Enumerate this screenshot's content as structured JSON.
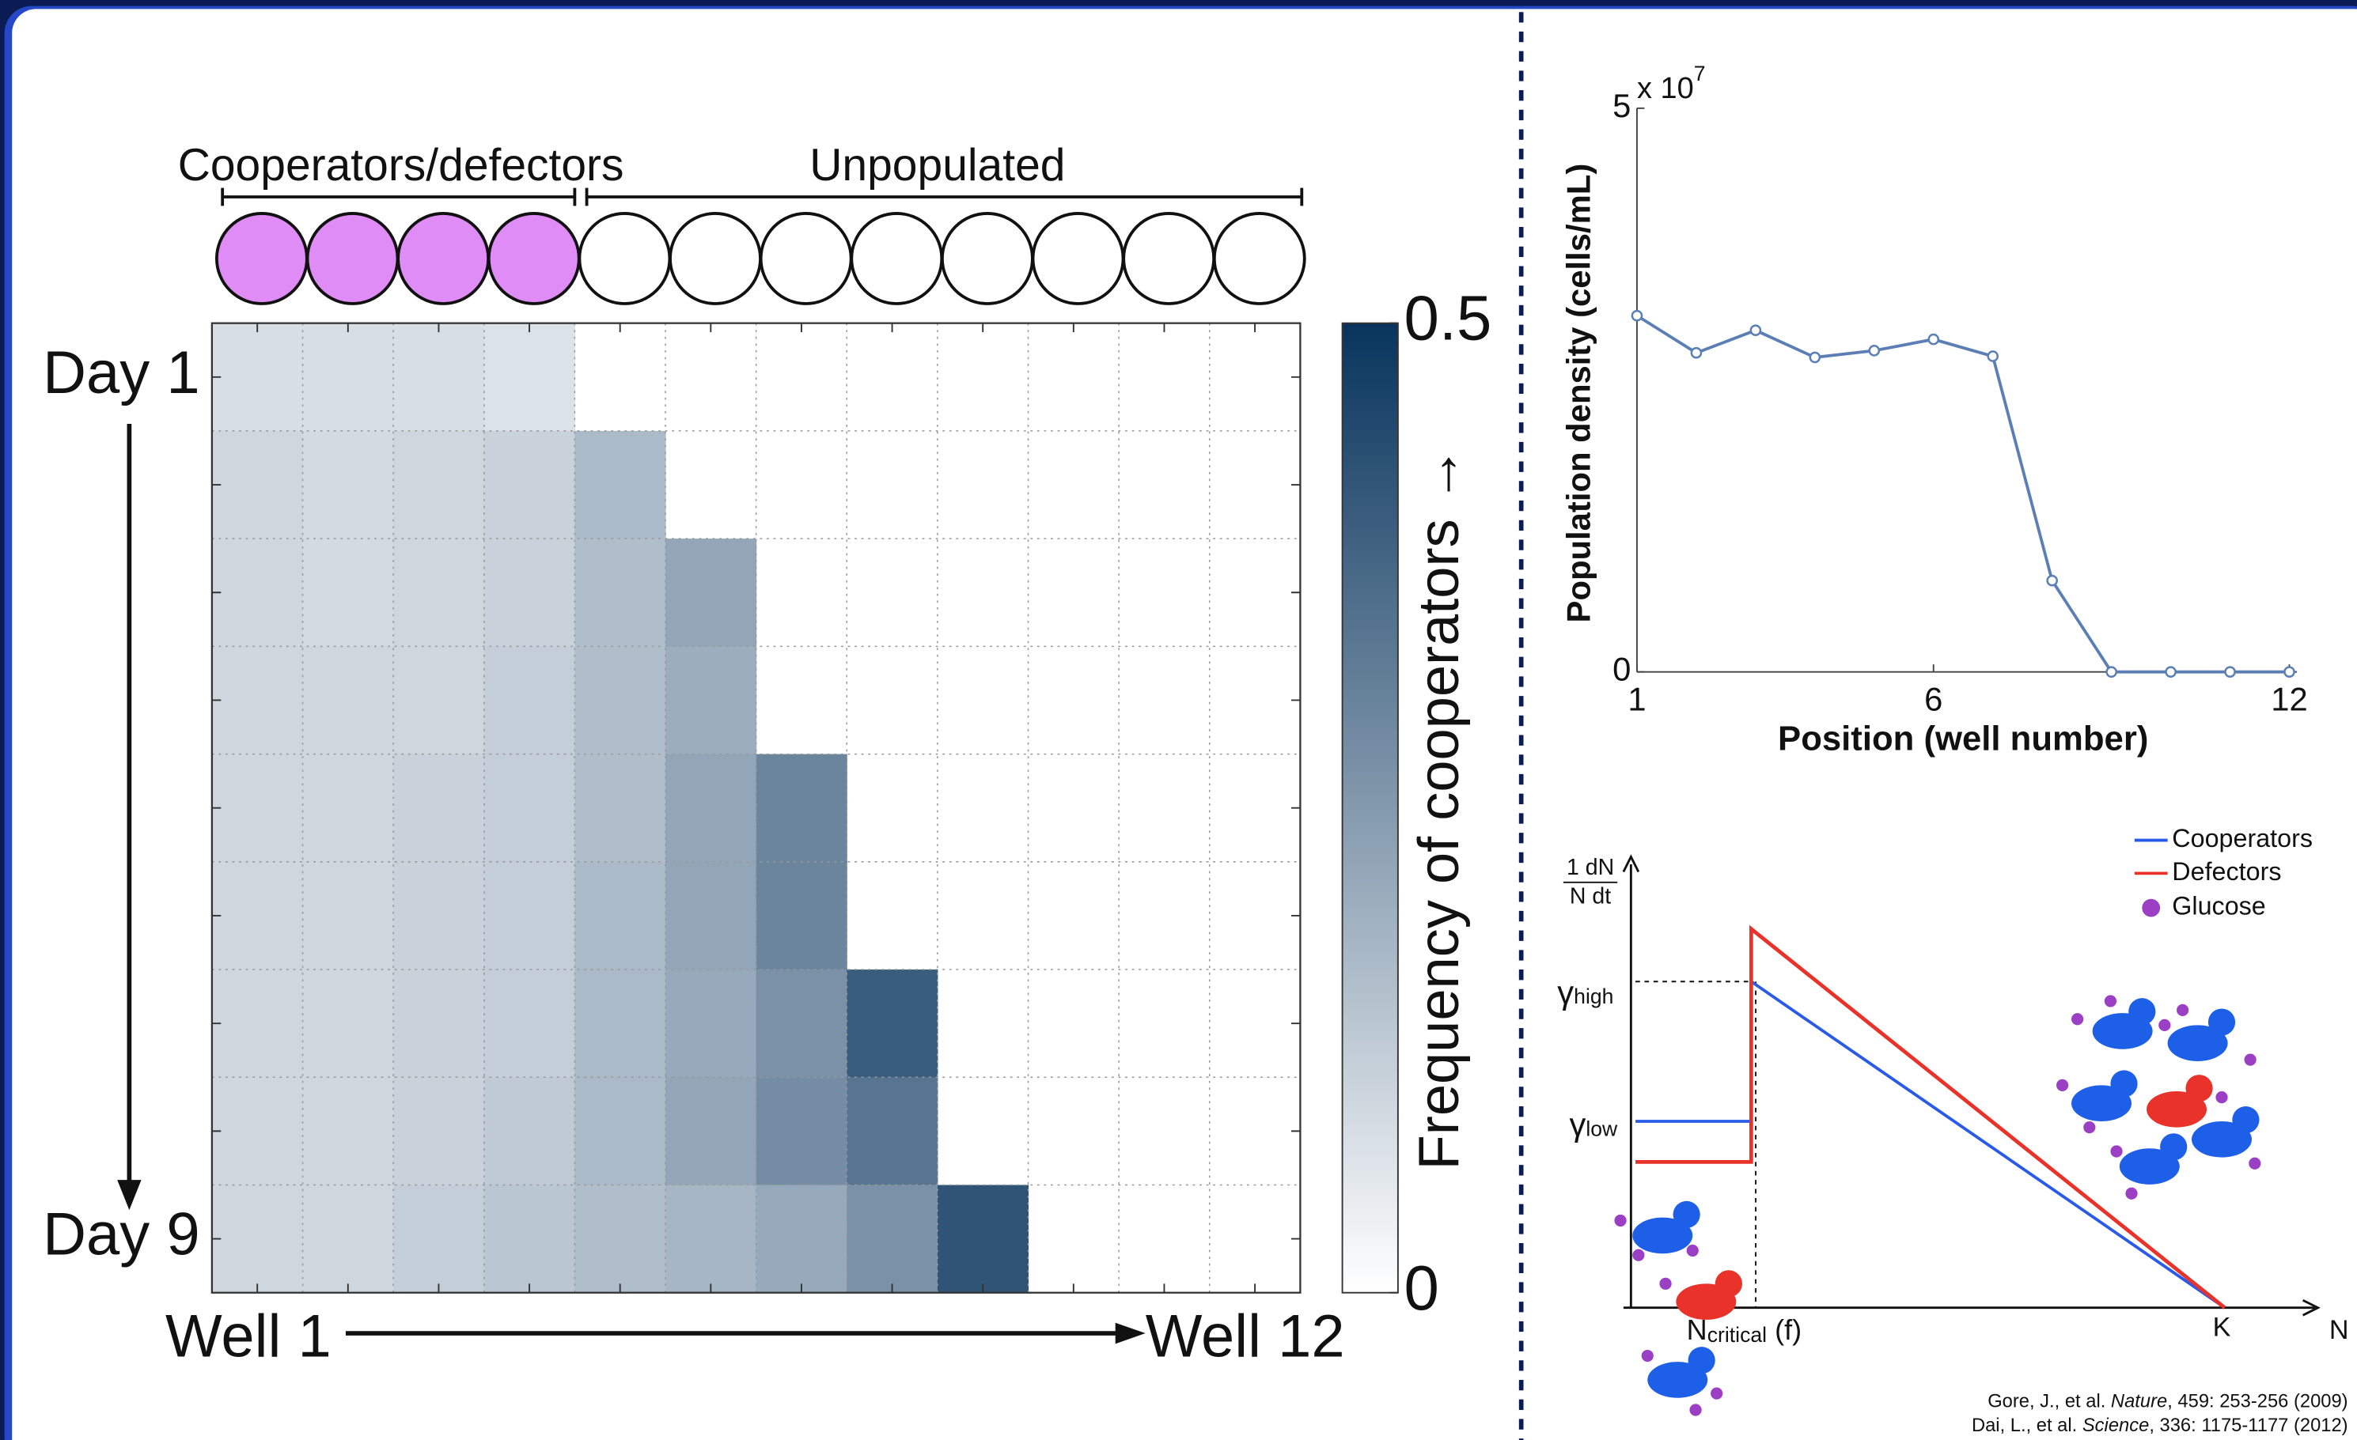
{
  "chart_data": [
    {
      "type": "heatmap",
      "header_left": "Cooperators/defectors",
      "header_right": "Unpopulated",
      "x_categories": [
        "Well 1",
        null,
        null,
        null,
        null,
        null,
        null,
        null,
        null,
        null,
        null,
        "Well 12"
      ],
      "y_categories": [
        "Day 1",
        null,
        null,
        null,
        null,
        null,
        null,
        null,
        "Day 9"
      ],
      "values": [
        [
          0.08,
          0.08,
          0.08,
          0.07,
          null,
          null,
          null,
          null,
          null,
          null,
          null,
          null
        ],
        [
          0.1,
          0.09,
          0.1,
          0.11,
          0.17,
          null,
          null,
          null,
          null,
          null,
          null,
          null
        ],
        [
          0.1,
          0.09,
          0.1,
          0.11,
          0.16,
          0.22,
          null,
          null,
          null,
          null,
          null,
          null
        ],
        [
          0.1,
          0.1,
          0.1,
          0.12,
          0.16,
          0.2,
          null,
          null,
          null,
          null,
          null,
          null
        ],
        [
          0.1,
          0.1,
          0.11,
          0.12,
          0.16,
          0.22,
          0.3,
          null,
          null,
          null,
          null,
          null
        ],
        [
          0.1,
          0.1,
          0.11,
          0.12,
          0.17,
          0.22,
          0.3,
          null,
          null,
          null,
          null,
          null
        ],
        [
          0.1,
          0.1,
          0.11,
          0.12,
          0.17,
          0.21,
          0.27,
          0.4,
          null,
          null,
          null,
          null
        ],
        [
          0.1,
          0.1,
          0.11,
          0.13,
          0.17,
          0.22,
          0.28,
          0.34,
          null,
          null,
          null,
          null
        ],
        [
          0.1,
          0.1,
          0.12,
          0.14,
          0.16,
          0.18,
          0.21,
          0.27,
          0.42,
          null,
          null,
          null
        ]
      ],
      "colormap": [
        "#ffffff",
        "#08345c"
      ],
      "populated_color": "#e08cf7",
      "clim": [
        0,
        0.5
      ],
      "cticks": [
        0,
        0.5
      ],
      "colorbar_label": "Frequency of cooperators →"
    },
    {
      "type": "line",
      "x": [
        1,
        2,
        3,
        4,
        5,
        6,
        7,
        8,
        9,
        10,
        11,
        12
      ],
      "series": [
        {
          "color": "#5b7fb5",
          "values": [
            3.16,
            2.83,
            3.03,
            2.79,
            2.85,
            2.95,
            2.8,
            0.81,
            0,
            0,
            0,
            0
          ]
        }
      ],
      "xlim": [
        1,
        12
      ],
      "xticks": [
        1,
        6,
        12
      ],
      "ylim": [
        0,
        5
      ],
      "yticks": [
        0,
        5
      ],
      "y_multiplier": "x 10",
      "y_multiplier_exponent": "7",
      "x_label": "Position (well number)",
      "y_label": "Population density (cells/mL)"
    }
  ],
  "schematic": {
    "y_label_top": "1 dN",
    "y_label_bottom": "N dt",
    "gamma_high": "γ",
    "gamma_high_sub": "high",
    "gamma_low": "γ",
    "gamma_low_sub": "low",
    "n_critical": "N",
    "n_critical_sub": "critical",
    "n_critical_suffix": " (f)",
    "k_label": "K",
    "x_label": "N",
    "legend": [
      "Cooperators",
      "Defectors",
      "Glucose"
    ]
  },
  "citations": [
    {
      "authors": "Gore, J., et al. ",
      "journal": "Nature",
      "rest": ", 459: 253-256 (2009)"
    },
    {
      "authors": "Dai, L., et al. ",
      "journal": "Science",
      "rest": ", 336: 1175-1177 (2012)"
    }
  ]
}
